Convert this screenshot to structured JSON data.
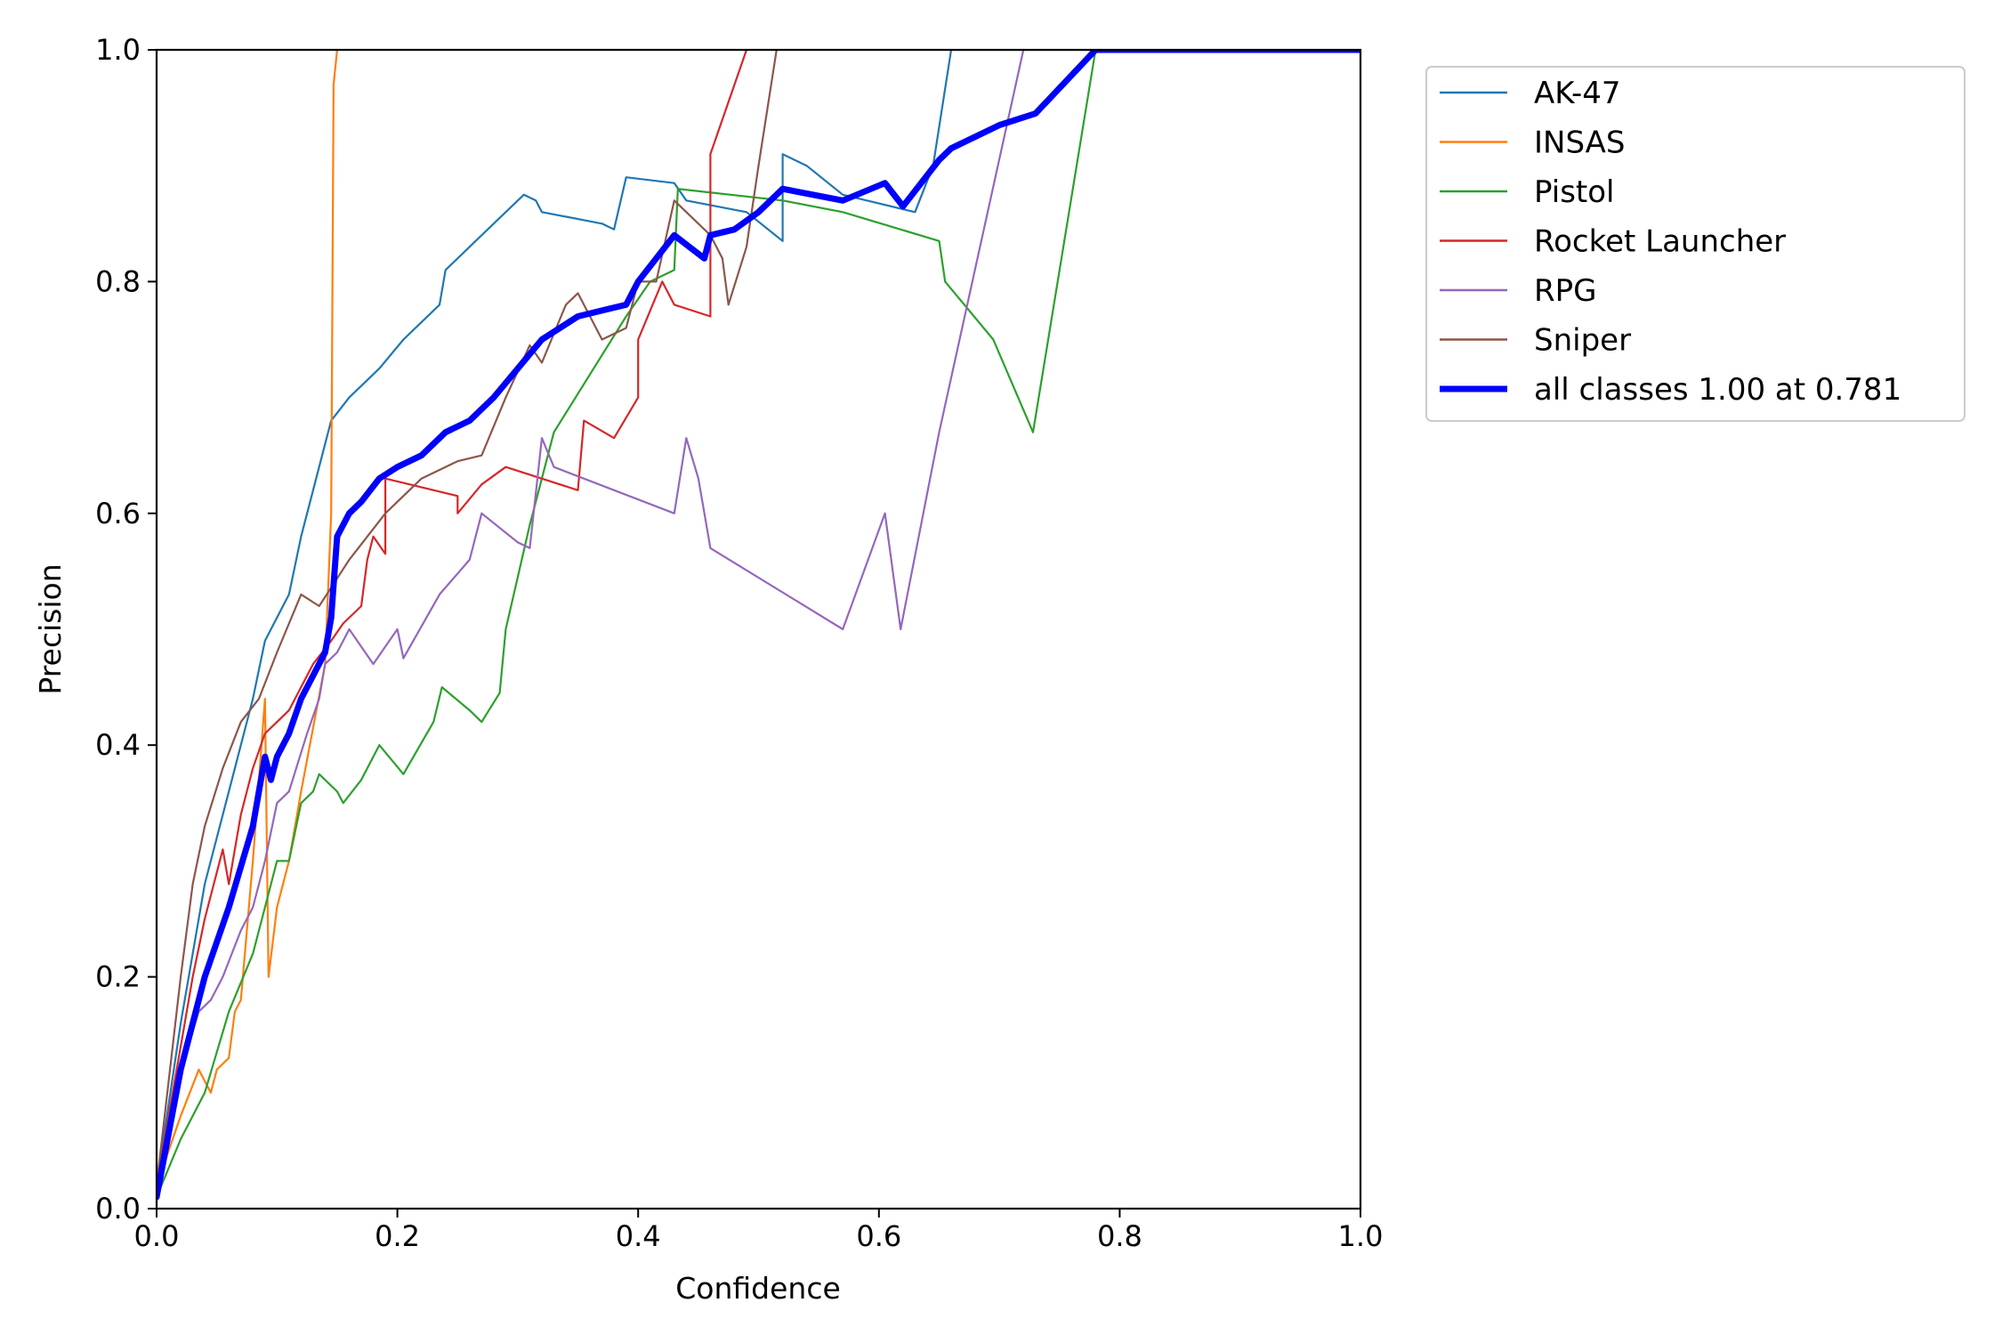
{
  "chart_data": {
    "type": "line",
    "title": "",
    "xlabel": "Confidence",
    "ylabel": "Precision",
    "xlim": [
      0,
      1
    ],
    "ylim": [
      0,
      1
    ],
    "xticks": [
      "0.0",
      "0.2",
      "0.4",
      "0.6",
      "0.8",
      "1.0"
    ],
    "yticks": [
      "0.0",
      "0.2",
      "0.4",
      "0.6",
      "0.8",
      "1.0"
    ],
    "legend_position": "outside-top-right",
    "series": [
      {
        "name": "AK-47",
        "color": "#1f77b4",
        "width": "thin",
        "points": [
          [
            0,
            0.02
          ],
          [
            0.02,
            0.16
          ],
          [
            0.04,
            0.28
          ],
          [
            0.06,
            0.36
          ],
          [
            0.08,
            0.44
          ],
          [
            0.09,
            0.49
          ],
          [
            0.11,
            0.53
          ],
          [
            0.12,
            0.58
          ],
          [
            0.13,
            0.62
          ],
          [
            0.14,
            0.66
          ],
          [
            0.145,
            0.68
          ],
          [
            0.16,
            0.7
          ],
          [
            0.185,
            0.725
          ],
          [
            0.205,
            0.75
          ],
          [
            0.235,
            0.78
          ],
          [
            0.24,
            0.81
          ],
          [
            0.27,
            0.84
          ],
          [
            0.305,
            0.875
          ],
          [
            0.315,
            0.87
          ],
          [
            0.32,
            0.86
          ],
          [
            0.37,
            0.85
          ],
          [
            0.38,
            0.845
          ],
          [
            0.39,
            0.89
          ],
          [
            0.43,
            0.885
          ],
          [
            0.44,
            0.87
          ],
          [
            0.49,
            0.86
          ],
          [
            0.52,
            0.835
          ],
          [
            0.52,
            0.91
          ],
          [
            0.54,
            0.9
          ],
          [
            0.57,
            0.875
          ],
          [
            0.59,
            0.87
          ],
          [
            0.63,
            0.86
          ],
          [
            0.645,
            0.9
          ],
          [
            0.66,
            1.0
          ],
          [
            1.0,
            1.0
          ]
        ]
      },
      {
        "name": "INSAS",
        "color": "#ff7f0e",
        "width": "thin",
        "points": [
          [
            0,
            0.02
          ],
          [
            0.02,
            0.08
          ],
          [
            0.035,
            0.12
          ],
          [
            0.045,
            0.1
          ],
          [
            0.05,
            0.12
          ],
          [
            0.06,
            0.13
          ],
          [
            0.065,
            0.17
          ],
          [
            0.07,
            0.18
          ],
          [
            0.08,
            0.3
          ],
          [
            0.09,
            0.44
          ],
          [
            0.093,
            0.2
          ],
          [
            0.1,
            0.26
          ],
          [
            0.11,
            0.3
          ],
          [
            0.12,
            0.36
          ],
          [
            0.14,
            0.47
          ],
          [
            0.145,
            0.6
          ],
          [
            0.147,
            0.97
          ],
          [
            0.15,
            1.0
          ]
        ]
      },
      {
        "name": "Pistol",
        "color": "#2ca02c",
        "width": "thin",
        "points": [
          [
            0,
            0.01
          ],
          [
            0.02,
            0.06
          ],
          [
            0.04,
            0.1
          ],
          [
            0.06,
            0.17
          ],
          [
            0.08,
            0.22
          ],
          [
            0.09,
            0.26
          ],
          [
            0.1,
            0.3
          ],
          [
            0.11,
            0.3
          ],
          [
            0.12,
            0.35
          ],
          [
            0.13,
            0.36
          ],
          [
            0.135,
            0.375
          ],
          [
            0.15,
            0.36
          ],
          [
            0.155,
            0.35
          ],
          [
            0.17,
            0.37
          ],
          [
            0.185,
            0.4
          ],
          [
            0.205,
            0.375
          ],
          [
            0.23,
            0.42
          ],
          [
            0.237,
            0.45
          ],
          [
            0.26,
            0.43
          ],
          [
            0.27,
            0.42
          ],
          [
            0.285,
            0.445
          ],
          [
            0.29,
            0.5
          ],
          [
            0.31,
            0.59
          ],
          [
            0.33,
            0.67
          ],
          [
            0.36,
            0.72
          ],
          [
            0.39,
            0.77
          ],
          [
            0.41,
            0.8
          ],
          [
            0.43,
            0.81
          ],
          [
            0.433,
            0.88
          ],
          [
            0.52,
            0.87
          ],
          [
            0.57,
            0.86
          ],
          [
            0.65,
            0.835
          ],
          [
            0.655,
            0.8
          ],
          [
            0.695,
            0.75
          ],
          [
            0.728,
            0.67
          ],
          [
            0.78,
            1.0
          ],
          [
            1.0,
            1.0
          ]
        ]
      },
      {
        "name": "Rocket Launcher",
        "color": "#d62728",
        "width": "thin",
        "points": [
          [
            0,
            0.02
          ],
          [
            0.02,
            0.14
          ],
          [
            0.03,
            0.2
          ],
          [
            0.04,
            0.25
          ],
          [
            0.055,
            0.31
          ],
          [
            0.06,
            0.28
          ],
          [
            0.07,
            0.34
          ],
          [
            0.08,
            0.38
          ],
          [
            0.09,
            0.41
          ],
          [
            0.1,
            0.42
          ],
          [
            0.11,
            0.43
          ],
          [
            0.13,
            0.47
          ],
          [
            0.145,
            0.49
          ],
          [
            0.155,
            0.505
          ],
          [
            0.17,
            0.52
          ],
          [
            0.175,
            0.56
          ],
          [
            0.18,
            0.58
          ],
          [
            0.19,
            0.565
          ],
          [
            0.19,
            0.63
          ],
          [
            0.25,
            0.615
          ],
          [
            0.25,
            0.6
          ],
          [
            0.27,
            0.625
          ],
          [
            0.29,
            0.64
          ],
          [
            0.35,
            0.62
          ],
          [
            0.355,
            0.68
          ],
          [
            0.38,
            0.665
          ],
          [
            0.4,
            0.7
          ],
          [
            0.4,
            0.75
          ],
          [
            0.42,
            0.8
          ],
          [
            0.43,
            0.78
          ],
          [
            0.46,
            0.77
          ],
          [
            0.46,
            0.91
          ],
          [
            0.49,
            1.0
          ]
        ]
      },
      {
        "name": "RPG",
        "color": "#9467bd",
        "width": "thin",
        "points": [
          [
            0,
            0.02
          ],
          [
            0.02,
            0.12
          ],
          [
            0.035,
            0.17
          ],
          [
            0.045,
            0.18
          ],
          [
            0.055,
            0.2
          ],
          [
            0.07,
            0.24
          ],
          [
            0.08,
            0.26
          ],
          [
            0.09,
            0.3
          ],
          [
            0.1,
            0.35
          ],
          [
            0.11,
            0.36
          ],
          [
            0.125,
            0.41
          ],
          [
            0.135,
            0.44
          ],
          [
            0.14,
            0.47
          ],
          [
            0.15,
            0.48
          ],
          [
            0.16,
            0.5
          ],
          [
            0.18,
            0.47
          ],
          [
            0.2,
            0.5
          ],
          [
            0.205,
            0.475
          ],
          [
            0.235,
            0.53
          ],
          [
            0.26,
            0.56
          ],
          [
            0.27,
            0.6
          ],
          [
            0.3,
            0.575
          ],
          [
            0.31,
            0.57
          ],
          [
            0.32,
            0.665
          ],
          [
            0.33,
            0.64
          ],
          [
            0.43,
            0.6
          ],
          [
            0.44,
            0.665
          ],
          [
            0.45,
            0.63
          ],
          [
            0.46,
            0.57
          ],
          [
            0.57,
            0.5
          ],
          [
            0.605,
            0.6
          ],
          [
            0.618,
            0.5
          ],
          [
            0.65,
            0.67
          ],
          [
            0.72,
            1.0
          ]
        ]
      },
      {
        "name": "Sniper",
        "color": "#8c564b",
        "width": "thin",
        "points": [
          [
            0,
            0.02
          ],
          [
            0.02,
            0.2
          ],
          [
            0.03,
            0.28
          ],
          [
            0.04,
            0.33
          ],
          [
            0.055,
            0.38
          ],
          [
            0.07,
            0.42
          ],
          [
            0.085,
            0.44
          ],
          [
            0.1,
            0.48
          ],
          [
            0.12,
            0.53
          ],
          [
            0.135,
            0.52
          ],
          [
            0.16,
            0.56
          ],
          [
            0.19,
            0.6
          ],
          [
            0.22,
            0.63
          ],
          [
            0.24,
            0.64
          ],
          [
            0.25,
            0.645
          ],
          [
            0.27,
            0.65
          ],
          [
            0.29,
            0.7
          ],
          [
            0.31,
            0.745
          ],
          [
            0.32,
            0.73
          ],
          [
            0.34,
            0.78
          ],
          [
            0.35,
            0.79
          ],
          [
            0.37,
            0.75
          ],
          [
            0.39,
            0.76
          ],
          [
            0.4,
            0.8
          ],
          [
            0.415,
            0.8
          ],
          [
            0.43,
            0.87
          ],
          [
            0.46,
            0.84
          ],
          [
            0.47,
            0.82
          ],
          [
            0.475,
            0.78
          ],
          [
            0.49,
            0.83
          ],
          [
            0.5,
            0.9
          ],
          [
            0.515,
            1.0
          ]
        ]
      },
      {
        "name": "all classes 1.00 at 0.781",
        "color": "#0000ff",
        "width": "thick",
        "points": [
          [
            0,
            0.01
          ],
          [
            0.02,
            0.12
          ],
          [
            0.04,
            0.2
          ],
          [
            0.06,
            0.26
          ],
          [
            0.08,
            0.33
          ],
          [
            0.09,
            0.39
          ],
          [
            0.095,
            0.37
          ],
          [
            0.1,
            0.39
          ],
          [
            0.11,
            0.41
          ],
          [
            0.12,
            0.44
          ],
          [
            0.14,
            0.48
          ],
          [
            0.145,
            0.51
          ],
          [
            0.15,
            0.58
          ],
          [
            0.16,
            0.6
          ],
          [
            0.17,
            0.61
          ],
          [
            0.185,
            0.63
          ],
          [
            0.2,
            0.64
          ],
          [
            0.22,
            0.65
          ],
          [
            0.24,
            0.67
          ],
          [
            0.26,
            0.68
          ],
          [
            0.28,
            0.7
          ],
          [
            0.3,
            0.725
          ],
          [
            0.32,
            0.75
          ],
          [
            0.35,
            0.77
          ],
          [
            0.37,
            0.775
          ],
          [
            0.39,
            0.78
          ],
          [
            0.4,
            0.8
          ],
          [
            0.415,
            0.82
          ],
          [
            0.43,
            0.84
          ],
          [
            0.455,
            0.82
          ],
          [
            0.46,
            0.84
          ],
          [
            0.48,
            0.845
          ],
          [
            0.5,
            0.86
          ],
          [
            0.52,
            0.88
          ],
          [
            0.57,
            0.87
          ],
          [
            0.605,
            0.885
          ],
          [
            0.62,
            0.865
          ],
          [
            0.65,
            0.905
          ],
          [
            0.66,
            0.915
          ],
          [
            0.7,
            0.935
          ],
          [
            0.73,
            0.945
          ],
          [
            0.78,
            1.0
          ],
          [
            1.0,
            1.0
          ]
        ]
      }
    ]
  }
}
